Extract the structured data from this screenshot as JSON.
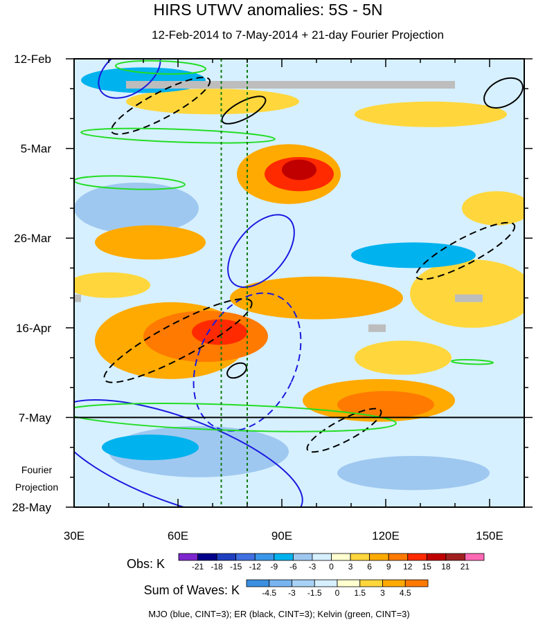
{
  "chart_data": {
    "type": "heatmap",
    "title": "HIRS UTWV anomalies: 5S - 5N",
    "subtitle": "12-Feb-2014 to 7-May-2014 + 21-day Fourier Projection",
    "x_ticks": [
      "30E",
      "60E",
      "90E",
      "120E",
      "150E"
    ],
    "x_tick_values": [
      30,
      60,
      90,
      120,
      150
    ],
    "xlim": [
      30,
      160
    ],
    "y_ticks": [
      "12-Feb",
      "5-Mar",
      "26-Mar",
      "16-Apr",
      "7-May",
      "28-May"
    ],
    "y_tick_days": [
      0,
      21,
      42,
      63,
      84,
      105
    ],
    "ylim_days": [
      0,
      105
    ],
    "projection_start_day": 84,
    "projection_label_line1": "Fourier",
    "projection_label_line2": "Projection",
    "reference_lons": [
      72.5,
      80
    ],
    "obs_colorbar": {
      "label": "Obs: K",
      "ticks": [
        "-21",
        "-18",
        "-15",
        "-12",
        "-9",
        "-6",
        "-3",
        "0",
        "3",
        "6",
        "9",
        "12",
        "15",
        "18",
        "21"
      ],
      "colors": [
        "#7d26cd",
        "#00008b",
        "#1f3fbf",
        "#3f6fe0",
        "#3a96e8",
        "#00b2ee",
        "#9fc8f0",
        "#d6f0ff",
        "#ffffd0",
        "#ffd73c",
        "#ffaa00",
        "#ff7a00",
        "#ff2a00",
        "#c00000",
        "#a02020",
        "#ff69b4"
      ]
    },
    "waves_colorbar": {
      "label": "Sum of Waves: K",
      "ticks": [
        "-4.5",
        "-3",
        "-1.5",
        "0",
        "1.5",
        "3",
        "4.5"
      ],
      "colors": [
        "#3a8fe0",
        "#78b4f0",
        "#a8d2f5",
        "#d6f0ff",
        "#ffffd0",
        "#ffd73c",
        "#ffaa00",
        "#ff7a00"
      ]
    },
    "legend_text": "MJO (blue, CINT=3); ER (black, CINT=3); Kelvin (green, CINT=3)",
    "anomaly_patches": [
      {
        "lon": 95,
        "day": 27,
        "rx": 10,
        "ry": 4,
        "value": 12
      },
      {
        "lon": 95,
        "day": 26,
        "rx": 5,
        "ry": 2.4,
        "value": 15
      },
      {
        "lon": 92,
        "day": 27,
        "rx": 15,
        "ry": 7,
        "value": 6
      },
      {
        "lon": 68,
        "day": 65,
        "rx": 18,
        "ry": 6,
        "value": 9
      },
      {
        "lon": 72,
        "day": 64,
        "rx": 8,
        "ry": 3,
        "value": 12
      },
      {
        "lon": 58,
        "day": 66,
        "rx": 22,
        "ry": 9,
        "value": 6
      },
      {
        "lon": 120,
        "day": 81,
        "rx": 14,
        "ry": 3.2,
        "value": 9
      },
      {
        "lon": 118,
        "day": 80,
        "rx": 22,
        "ry": 5,
        "value": 6
      },
      {
        "lon": 100,
        "day": 56,
        "rx": 25,
        "ry": 5,
        "value": 6
      },
      {
        "lon": 145,
        "day": 55,
        "rx": 18,
        "ry": 8,
        "value": 3
      },
      {
        "lon": 52,
        "day": 43,
        "rx": 16,
        "ry": 4,
        "value": 6
      },
      {
        "lon": 70,
        "day": 10,
        "rx": 25,
        "ry": 3,
        "value": 3
      },
      {
        "lon": 133,
        "day": 13,
        "rx": 22,
        "ry": 3,
        "value": 3
      },
      {
        "lon": 40,
        "day": 53,
        "rx": 12,
        "ry": 3,
        "value": 3
      },
      {
        "lon": 152,
        "day": 35,
        "rx": 10,
        "ry": 4,
        "value": 3
      },
      {
        "lon": 125,
        "day": 70,
        "rx": 14,
        "ry": 4,
        "value": 3
      },
      {
        "lon": 48,
        "day": 35,
        "rx": 18,
        "ry": 6,
        "value": -3
      },
      {
        "lon": 128,
        "day": 46,
        "rx": 18,
        "ry": 3,
        "value": -6
      },
      {
        "lon": 50,
        "day": 5,
        "rx": 18,
        "ry": 3,
        "value": -6
      },
      {
        "lon": 66,
        "day": 92,
        "rx": 26,
        "ry": 6,
        "value": -3
      },
      {
        "lon": 52,
        "day": 91,
        "rx": 14,
        "ry": 3,
        "value": -6
      },
      {
        "lon": 128,
        "day": 97,
        "rx": 22,
        "ry": 4,
        "value": -3
      }
    ],
    "wave_contours": [
      {
        "wave": "MJO",
        "sign": "positive",
        "lon": 46,
        "day": 3,
        "rx": 10,
        "ry": 5
      },
      {
        "wave": "MJO",
        "sign": "positive",
        "lon": 84,
        "day": 45,
        "rx": 7,
        "ry": 10
      },
      {
        "wave": "MJO",
        "sign": "negative",
        "lon": 80,
        "day": 71,
        "rx": 14,
        "ry": 17
      },
      {
        "wave": "MJO",
        "sign": "positive",
        "lon": 60,
        "day": 94,
        "rx": 38,
        "ry": 10
      },
      {
        "wave": "ER",
        "sign": "negative",
        "lon": 55,
        "day": 11,
        "rx": 16,
        "ry": 3
      },
      {
        "wave": "ER",
        "sign": "positive",
        "lon": 79,
        "day": 12,
        "rx": 7,
        "ry": 2
      },
      {
        "wave": "ER",
        "sign": "negative",
        "lon": 60,
        "day": 66,
        "rx": 24,
        "ry": 4
      },
      {
        "wave": "ER",
        "sign": "positive",
        "lon": 77,
        "day": 73,
        "rx": 3,
        "ry": 1.5
      },
      {
        "wave": "ER",
        "sign": "negative",
        "lon": 143,
        "day": 45,
        "rx": 16,
        "ry": 3
      },
      {
        "wave": "ER",
        "sign": "negative",
        "lon": 108,
        "day": 87,
        "rx": 12,
        "ry": 2.5
      },
      {
        "wave": "ER",
        "sign": "positive",
        "lon": 154,
        "day": 8,
        "rx": 6,
        "ry": 3
      },
      {
        "wave": "Kelvin",
        "sign": "positive",
        "lon": 55,
        "day": 2,
        "rx": 13,
        "ry": 1.5
      },
      {
        "wave": "Kelvin",
        "sign": "positive",
        "lon": 60,
        "day": 18,
        "rx": 28,
        "ry": 1.5
      },
      {
        "wave": "Kelvin",
        "sign": "positive",
        "lon": 46,
        "day": 29,
        "rx": 16,
        "ry": 1.5
      },
      {
        "wave": "Kelvin",
        "sign": "positive",
        "lon": 75,
        "day": 84,
        "rx": 48,
        "ry": 3
      },
      {
        "wave": "Kelvin",
        "sign": "positive",
        "lon": 145,
        "day": 71,
        "rx": 6,
        "ry": 0.5
      }
    ],
    "missing_data": [
      {
        "lon_start": 45,
        "lon_end": 140,
        "day": 6
      },
      {
        "lon_start": 140,
        "lon_end": 148,
        "day": 56
      },
      {
        "lon_start": 115,
        "lon_end": 120,
        "day": 63
      },
      {
        "lon_start": 30,
        "lon_end": 32,
        "day": 56
      }
    ]
  }
}
